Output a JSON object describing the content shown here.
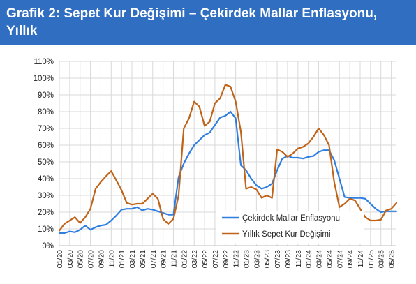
{
  "header": {
    "title": "Grafik 2: Sepet Kur Değişimi – Çekirdek Mallar Enflasyonu, Yıllık"
  },
  "colors": {
    "header_bg": "#2f6ec1",
    "core_goods": "#2f7fe0",
    "basket_fx": "#c0641a",
    "grid": "#d9d9d9"
  },
  "chart_data": {
    "type": "line",
    "title": "Grafik 2: Sepet Kur Değişimi – Çekirdek Mallar Enflasyonu, Yıllık",
    "xlabel": "",
    "ylabel": "",
    "ylim": [
      0,
      110
    ],
    "ytick_labels": [
      "0%",
      "10%",
      "20%",
      "30%",
      "40%",
      "50%",
      "60%",
      "70%",
      "80%",
      "90%",
      "100%",
      "110%"
    ],
    "grid": "vertical and horizontal",
    "legend_position": "bottom-right",
    "x": [
      "01/20",
      "02/20",
      "03/20",
      "04/20",
      "05/20",
      "06/20",
      "07/20",
      "08/20",
      "09/20",
      "10/20",
      "11/20",
      "12/20",
      "01/21",
      "02/21",
      "03/21",
      "04/21",
      "05/21",
      "06/21",
      "07/21",
      "08/21",
      "09/21",
      "10/21",
      "11/21",
      "12/21",
      "01/22",
      "02/22",
      "03/22",
      "04/22",
      "05/22",
      "06/22",
      "07/22",
      "08/22",
      "09/22",
      "10/22",
      "11/22",
      "12/22",
      "01/23",
      "02/23",
      "03/23",
      "04/23",
      "05/23",
      "06/23",
      "07/23",
      "08/23",
      "09/23",
      "10/23",
      "11/23",
      "12/23",
      "01/24",
      "02/24",
      "03/24",
      "04/24",
      "05/24",
      "06/24",
      "07/24",
      "08/24",
      "09/24",
      "10/24",
      "11/24",
      "12/24",
      "01/25",
      "02/25",
      "03/25",
      "04/25",
      "05/25",
      "06/25"
    ],
    "x_tick_labels": [
      "01/20",
      "03/20",
      "05/20",
      "07/20",
      "09/20",
      "11/20",
      "01/21",
      "03/21",
      "05/21",
      "07/21",
      "09/21",
      "11/21",
      "01/22",
      "03/22",
      "05/22",
      "07/22",
      "09/22",
      "11/22",
      "01/23",
      "03/23",
      "05/23",
      "07/23",
      "09/23",
      "11/23",
      "01/24",
      "03/24",
      "05/24",
      "07/24",
      "09/24",
      "11/24",
      "01/25",
      "03/25",
      "05/25"
    ],
    "series": [
      {
        "name": "Çekirdek Mallar Enflasyonu",
        "color": "#2f7fe0",
        "values": [
          7.5,
          7.5,
          8.5,
          8.0,
          9.5,
          12.0,
          9.5,
          11.0,
          12.0,
          12.5,
          15.0,
          18.0,
          21.5,
          22.0,
          22.0,
          23.0,
          21.0,
          22.0,
          21.5,
          20.5,
          19.5,
          18.5,
          18.5,
          41.0,
          49.0,
          55.0,
          60.0,
          63.0,
          66.0,
          67.5,
          72.0,
          76.5,
          77.5,
          80.0,
          76.0,
          48.0,
          45.0,
          40.0,
          36.0,
          34.0,
          35.0,
          37.0,
          45.0,
          52.0,
          53.5,
          52.5,
          52.5,
          52.0,
          53.0,
          53.5,
          56.0,
          57.0,
          57.0,
          51.0,
          40.0,
          29.0,
          28.5,
          28.5,
          28.5,
          28.0,
          25.0,
          22.0,
          20.0,
          20.5,
          20.5,
          20.5
        ]
      },
      {
        "name": "Yıllık Sepet Kur Değişimi",
        "color": "#c0641a",
        "values": [
          9.0,
          13.0,
          15.0,
          17.0,
          13.5,
          17.0,
          22.0,
          34.0,
          38.0,
          41.5,
          44.5,
          39.0,
          33.0,
          25.5,
          24.5,
          25.0,
          25.0,
          28.0,
          31.0,
          28.0,
          16.0,
          13.0,
          16.0,
          30.0,
          70.0,
          76.0,
          86.0,
          83.0,
          71.5,
          74.0,
          85.0,
          88.0,
          96.0,
          95.0,
          86.0,
          68.0,
          34.0,
          35.0,
          33.5,
          28.5,
          30.0,
          28.5,
          57.5,
          56.0,
          53.0,
          55.0,
          58.0,
          59.0,
          61.0,
          65.0,
          70.0,
          66.0,
          60.0,
          38.0,
          23.0,
          25.0,
          28.0,
          27.0,
          22.0,
          17.0,
          15.0,
          15.0,
          15.5,
          21.0,
          22.0,
          25.5
        ]
      }
    ]
  }
}
